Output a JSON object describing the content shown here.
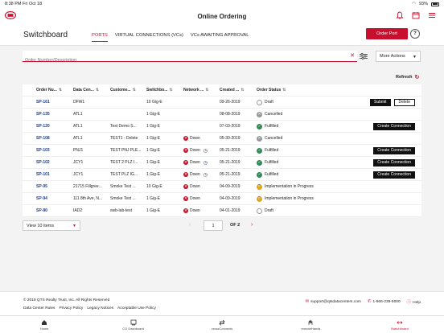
{
  "status_bar": {
    "time": "8:38 PM",
    "date": "Fri Oct 18",
    "battery": "93%"
  },
  "app_title": "Online Ordering",
  "page_title": "Switchboard",
  "tabs": [
    {
      "label": "PORTS",
      "active": true
    },
    {
      "label": "VIRTUAL CONNECTIONS (VCs)",
      "active": false
    },
    {
      "label": "VCs AWAITING APPROVAL",
      "active": false
    }
  ],
  "order_port_label": "Order Port",
  "help_label": "?",
  "search": {
    "placeholder": "Order Number/Description",
    "value": ""
  },
  "more_actions_label": "More Actions",
  "refresh_label": "Refresh",
  "columns": [
    "Order Nu...",
    "Data Cen...",
    "Custome...",
    "Switchbo...",
    "Network ...",
    "Created ...",
    "Order Status"
  ],
  "rows": [
    {
      "order": "SP-161",
      "dc": "DFW1",
      "customer": "",
      "switchboard": "10 Gig-E",
      "network": "",
      "clock": false,
      "created": "09-26-2019",
      "status": "Draft",
      "status_type": "draft",
      "actions": [
        "Submit",
        "Delete"
      ]
    },
    {
      "order": "SP-135",
      "dc": "ATL1",
      "customer": "",
      "switchboard": "1 Gig-E",
      "network": "",
      "clock": false,
      "created": "08-08-2019",
      "status": "Cancelled",
      "status_type": "cancel",
      "actions": []
    },
    {
      "order": "SP-120",
      "dc": "ATL1",
      "customer": "Test Demo S...",
      "switchboard": "1 Gig-E",
      "network": "",
      "clock": false,
      "created": "07-03-2019",
      "status": "Fulfilled",
      "status_type": "fulfilled",
      "actions": [
        "Create Connection"
      ]
    },
    {
      "order": "SP-108",
      "dc": "ATL1",
      "customer": "TEST1 - Delete",
      "switchboard": "1 Gig-E",
      "network": "Down",
      "clock": false,
      "created": "05-30-2019",
      "status": "Cancelled",
      "status_type": "cancel",
      "actions": []
    },
    {
      "order": "SP-103",
      "dc": "PNJ1",
      "customer": "TEST PNJ PLE...",
      "switchboard": "1 Gig-E",
      "network": "Down",
      "clock": true,
      "created": "05-21-2019",
      "status": "Fulfilled",
      "status_type": "fulfilled",
      "actions": [
        "Create Connection"
      ]
    },
    {
      "order": "SP-102",
      "dc": "JCY1",
      "customer": "TEST 2 PLZ I...",
      "switchboard": "1 Gig-E",
      "network": "Down",
      "clock": true,
      "created": "05-21-2019",
      "status": "Fulfilled",
      "status_type": "fulfilled",
      "actions": [
        "Create Connection"
      ]
    },
    {
      "order": "SP-101",
      "dc": "JCY1",
      "customer": "TEST PLZ IG...",
      "switchboard": "1 Gig-E",
      "network": "Down",
      "clock": true,
      "created": "05-21-2019",
      "status": "Fulfilled",
      "status_type": "fulfilled",
      "actions": [
        "Create Connection"
      ]
    },
    {
      "order": "SP-95",
      "dc": "21715 Fillgree...",
      "customer": "Smoke Test ...",
      "switchboard": "10 Gig-E",
      "network": "Down",
      "clock": false,
      "created": "04-09-2019",
      "status": "Implementation in Progress",
      "status_type": "impl",
      "actions": []
    },
    {
      "order": "SP-94",
      "dc": "111 8th Ave, N...",
      "customer": "Smoke Test ...",
      "switchboard": "1 Gig-E",
      "network": "Down",
      "clock": false,
      "created": "04-09-2019",
      "status": "Implementation in Progress",
      "status_type": "impl",
      "actions": []
    },
    {
      "order": "SP-80",
      "dc": "IAD2",
      "customer": "swb-lab-test",
      "switchboard": "1 Gig-E",
      "network": "Down",
      "clock": false,
      "created": "04-01-2019",
      "status": "Draft",
      "status_type": "draft",
      "actions": []
    }
  ],
  "pagination": {
    "page_size": "View 10 items",
    "current_page": "1",
    "of_label": "OF 2"
  },
  "footer": {
    "copyright": "© 2019 QTS Realty Trust, Inc. All Rights Reserved",
    "links": [
      "Data Center Rules",
      "Privacy Policy",
      "Legacy Notices",
      "Acceptable Use Policy"
    ],
    "email": "support@qtsdatacenters.com",
    "phone": "1-866-239-5000",
    "help": "Help"
  },
  "bottom_tabs": [
    {
      "label": "Home",
      "icon": "home-icon",
      "active": false
    },
    {
      "label": "CO Dashboard",
      "icon": "dashboard-icon",
      "active": false
    },
    {
      "label": "crossConnects",
      "icon": "cross-connects-icon",
      "active": false
    },
    {
      "label": "remoteHands",
      "icon": "remote-hands-icon",
      "active": false
    },
    {
      "label": "Switchboard",
      "icon": "switchboard-icon",
      "active": true
    }
  ],
  "colors": {
    "accent": "#c8102e",
    "link": "#1a3a8c",
    "fulfilled": "#2e8b57",
    "in_progress": "#e8a317"
  }
}
